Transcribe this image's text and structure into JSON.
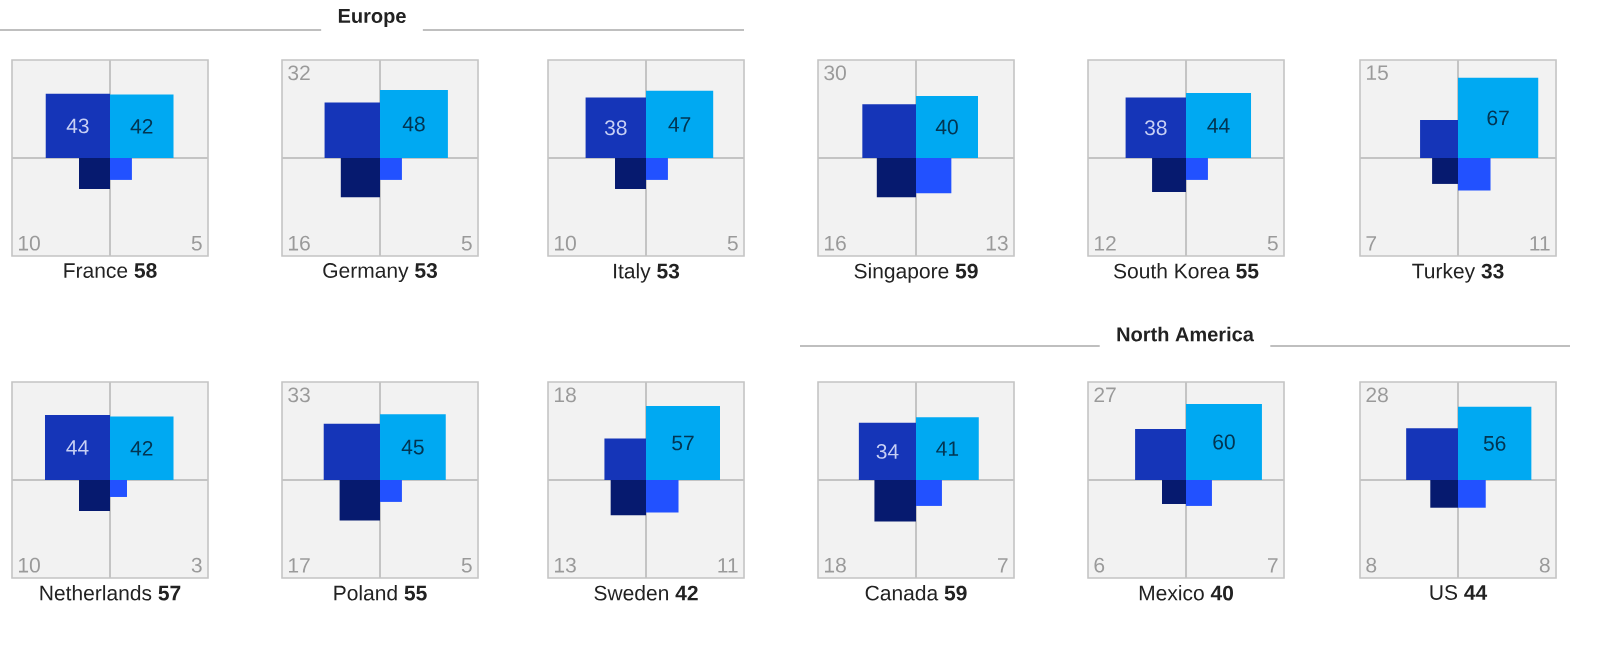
{
  "chart_data": [
    {
      "type": "other",
      "title": "Europe"
    },
    {
      "type": "other",
      "title": "France **58**",
      "values": [
        43,
        42,
        10,
        5
      ],
      "colors": [
        "#1535b8",
        "#00a9f2",
        "#061a6f",
        "#2251ff"
      ],
      "data_labels": true
    },
    {
      "type": "other",
      "title": "Germany **53**",
      "values": [
        32,
        48,
        16,
        5
      ],
      "colors": [
        "#1535b8",
        "#00a9f2",
        "#061a6f",
        "#2251ff"
      ],
      "data_labels": true
    },
    {
      "type": "other",
      "title": "Italy **53**",
      "values": [
        38,
        47,
        10,
        5
      ],
      "colors": [
        "#1535b8",
        "#00a9f2",
        "#061a6f",
        "#2251ff"
      ],
      "data_labels": true
    },
    {
      "type": "other",
      "title": "Singapore **59**",
      "values": [
        30,
        40,
        16,
        13
      ],
      "colors": [
        "#1535b8",
        "#00a9f2",
        "#061a6f",
        "#2251ff"
      ],
      "data_labels": true
    },
    {
      "type": "other",
      "title": "South Korea **55**",
      "values": [
        38,
        44,
        12,
        5
      ],
      "colors": [
        "#1535b8",
        "#00a9f2",
        "#061a6f",
        "#2251ff"
      ],
      "data_labels": true
    },
    {
      "type": "other",
      "title": "Turkey **33**",
      "values": [
        15,
        67,
        7,
        11
      ],
      "colors": [
        "#1535b8",
        "#00a9f2",
        "#061a6f",
        "#2251ff"
      ],
      "data_labels": true
    },
    {
      "type": "other",
      "title": "Netherlands **57**",
      "values": [
        44,
        42,
        10,
        3
      ],
      "colors": [
        "#1535b8",
        "#00a9f2",
        "#061a6f",
        "#2251ff"
      ],
      "data_labels": true
    },
    {
      "type": "other",
      "title": "Poland **55**",
      "values": [
        33,
        45,
        17,
        5
      ],
      "colors": [
        "#1535b8",
        "#00a9f2",
        "#061a6f",
        "#2251ff"
      ],
      "data_labels": true
    },
    {
      "type": "other",
      "title": "Sweden **42**",
      "values": [
        18,
        57,
        13,
        11
      ],
      "colors": [
        "#1535b8",
        "#00a9f2",
        "#061a6f",
        "#2251ff"
      ],
      "data_labels": true
    },
    {
      "type": "other",
      "title": "North America"
    },
    {
      "type": "other",
      "title": "Canada **59**",
      "values": [
        34,
        41,
        18,
        7
      ],
      "colors": [
        "#1535b8",
        "#00a9f2",
        "#061a6f",
        "#2251ff"
      ],
      "data_labels": true
    },
    {
      "type": "other",
      "title": "Mexico **40**",
      "values": [
        27,
        60,
        6,
        7
      ],
      "colors": [
        "#1535b8",
        "#00a9f2",
        "#061a6f",
        "#2251ff"
      ],
      "data_labels": true
    },
    {
      "type": "other",
      "title": "US **44**",
      "values": [
        28,
        56,
        8,
        8
      ],
      "colors": [
        "#1535b8",
        "#00a9f2",
        "#061a6f",
        "#2251ff"
      ],
      "data_labels": true
    }
  ]
}
